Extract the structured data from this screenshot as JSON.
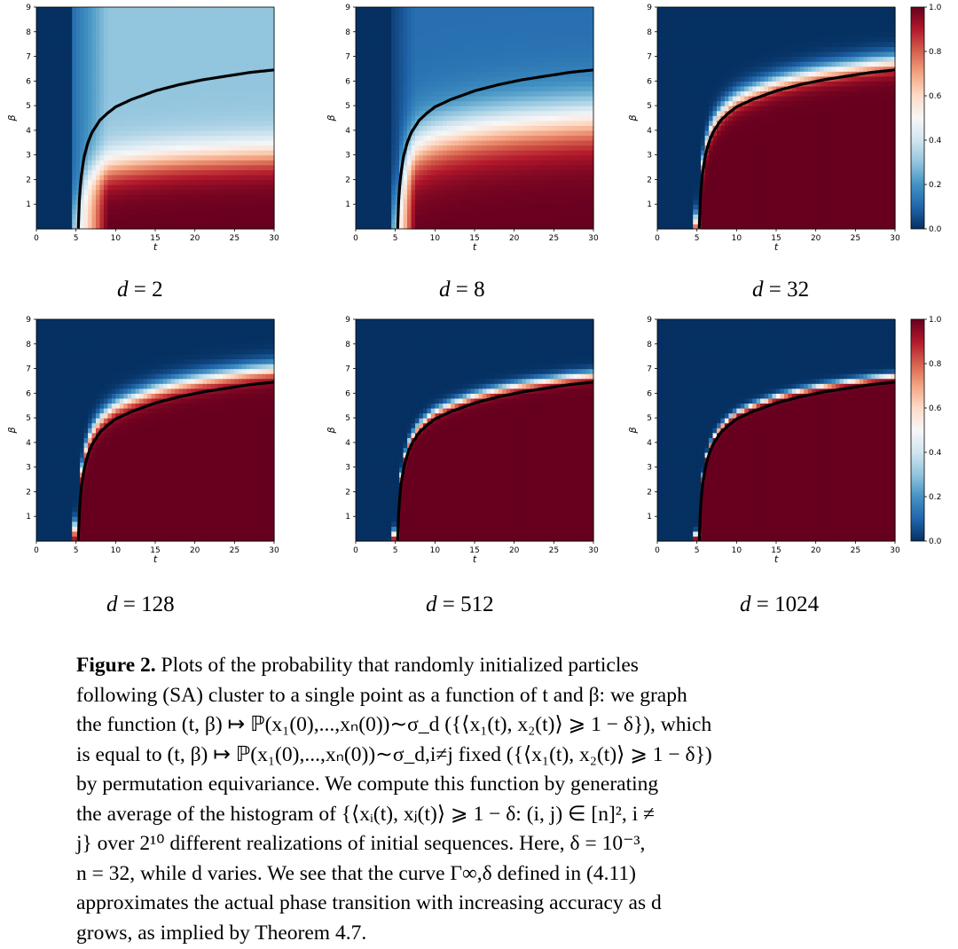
{
  "figure": {
    "colormap": {
      "name": "RdBu_r",
      "low_color": "#053061",
      "mid_color": "#f7f7f7",
      "high_color": "#67001f",
      "ticks": [
        "0.0",
        "0.2",
        "0.4",
        "0.6",
        "0.8",
        "1.0"
      ]
    },
    "curve_color": "#000000",
    "panels": [
      {
        "label_var": "d",
        "label_eq": "= 2",
        "d": 2,
        "sharpness": 0.9,
        "shift": 0.5
      },
      {
        "label_var": "d",
        "label_eq": "= 8",
        "d": 8,
        "sharpness": 1.6,
        "shift": 1.4
      },
      {
        "label_var": "d",
        "label_eq": "= 32",
        "d": 32,
        "sharpness": 4.5,
        "shift": 0.35
      },
      {
        "label_var": "d",
        "label_eq": "= 128",
        "d": 128,
        "sharpness": 5.0,
        "shift": 0.55
      },
      {
        "label_var": "d",
        "label_eq": "= 512",
        "d": 512,
        "sharpness": 9.0,
        "shift": 0.32
      },
      {
        "label_var": "d",
        "label_eq": "= 1024",
        "d": 1024,
        "sharpness": 14.0,
        "shift": 0.28
      }
    ]
  },
  "chart_data": {
    "type": "heatmap",
    "title": "",
    "xlabel": "t",
    "ylabel": "β",
    "xlim": [
      0,
      30
    ],
    "ylim": [
      0,
      9
    ],
    "x_ticks": [
      "0",
      "5",
      "10",
      "15",
      "20",
      "25",
      "30"
    ],
    "y_ticks": [
      "1",
      "2",
      "3",
      "4",
      "5",
      "6",
      "7",
      "8",
      "9"
    ],
    "colorbar_range": [
      0.0,
      1.0
    ],
    "colorbar_ticks": [
      "0.0",
      "0.2",
      "0.4",
      "0.6",
      "0.8",
      "1.0"
    ],
    "series": [
      {
        "name": "d = 2",
        "values": [],
        "note": "probability of clustering"
      },
      {
        "name": "d = 8",
        "values": []
      },
      {
        "name": "d = 32",
        "values": []
      },
      {
        "name": "d = 128",
        "values": []
      },
      {
        "name": "d = 512",
        "values": []
      },
      {
        "name": "d = 1024",
        "values": []
      }
    ],
    "curve": {
      "name": "Γ∞,δ",
      "x": [
        5.3,
        5.4,
        5.6,
        6,
        6.5,
        7,
        8,
        9,
        10,
        12,
        15,
        18,
        21,
        24,
        27,
        30
      ],
      "y": [
        0.05,
        1.0,
        2.0,
        2.9,
        3.5,
        3.9,
        4.4,
        4.7,
        4.95,
        5.25,
        5.6,
        5.85,
        6.05,
        6.2,
        6.35,
        6.45
      ]
    }
  },
  "caption": {
    "figure_label": "Figure 2.",
    "lines": [
      " Plots of the probability that randomly initialized particles",
      "following (SA) cluster to a single point as a function of t and β: we graph",
      "the function (t, β) ↦ ℙ(x₁(0),...,xₙ(0))∼σ_d ({⟨x₁(t), x₂(t)⟩ ⩾ 1 − δ}), which",
      "is equal to (t, β) ↦ ℙ(x₁(0),...,xₙ(0))∼σ_d,i≠j fixed ({⟨x₁(t), x₂(t)⟩ ⩾ 1 − δ})",
      "by permutation equivariance. We compute this function by generating",
      "the average of the histogram of {⟨xᵢ(t), xⱼ(t)⟩ ⩾ 1 − δ: (i, j) ∈ [n]², i ≠",
      "j} over 2¹⁰ different realizations of initial sequences. Here, δ = 10⁻³,",
      "n = 32, while d varies. We see that the curve Γ∞,δ defined in (4.11)",
      "approximates the actual phase transition with increasing accuracy as d",
      "grows, as implied by Theorem 4.7."
    ]
  }
}
